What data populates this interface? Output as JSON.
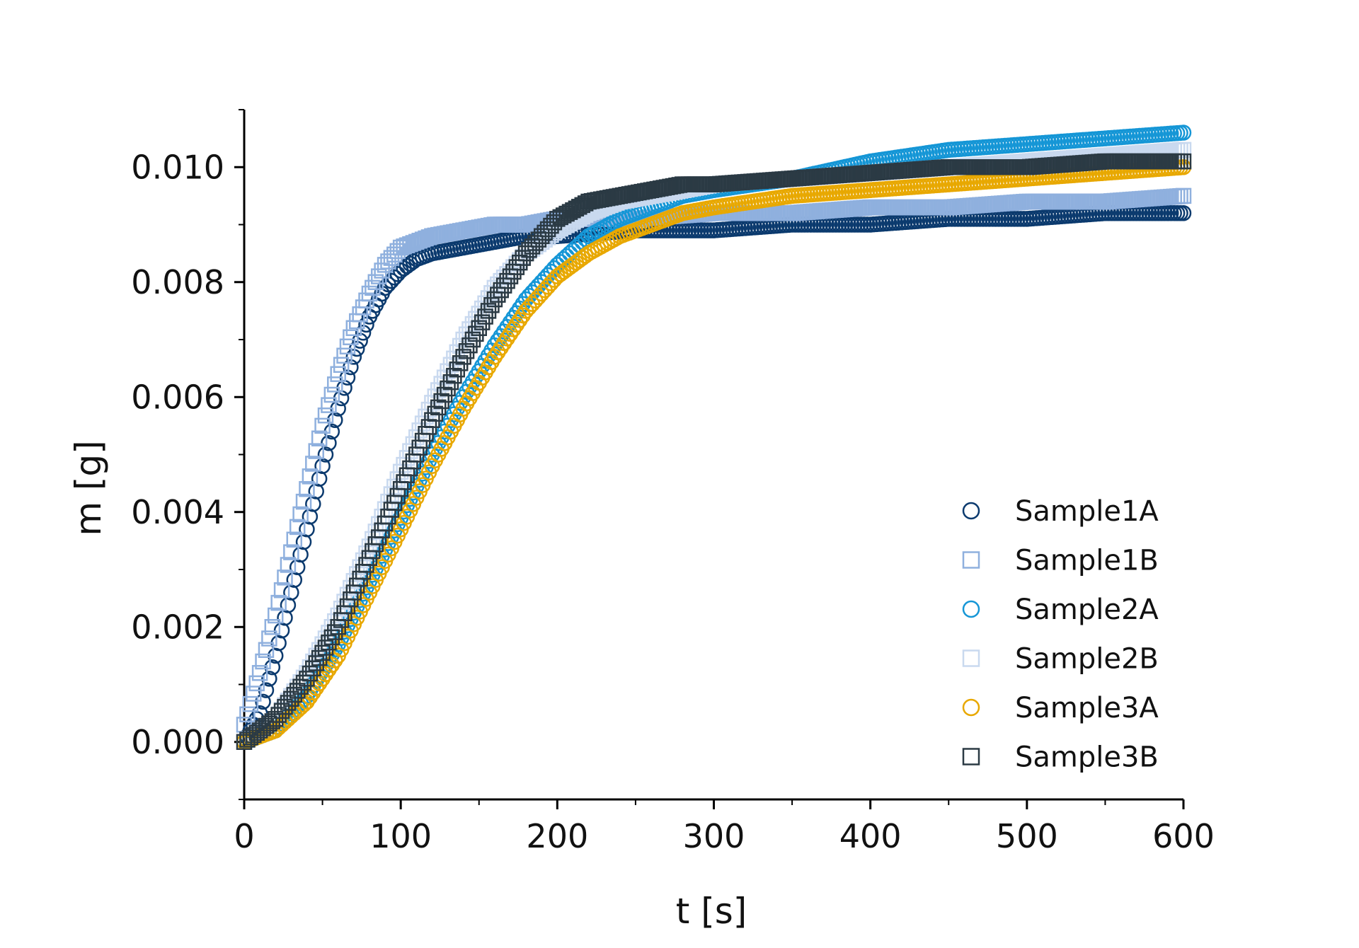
{
  "chart_data": {
    "type": "scatter",
    "xlabel": "t [s]",
    "ylabel": "m [g]",
    "xlim": [
      0,
      600
    ],
    "ylim": [
      -0.001,
      0.011
    ],
    "x_ticks": [
      "0",
      "100",
      "200",
      "300",
      "400",
      "500",
      "600"
    ],
    "y_ticks": [
      "0.000",
      "0.002",
      "0.004",
      "0.006",
      "0.008",
      "0.010"
    ],
    "legend_position": "bottom-right",
    "grid": false,
    "series": [
      {
        "name": "Sample1A",
        "marker": "circle",
        "color": "#0b3a6e",
        "x": [
          0,
          10,
          20,
          30,
          40,
          50,
          60,
          70,
          80,
          90,
          100,
          110,
          120,
          140,
          160,
          180,
          200,
          250,
          300,
          350,
          400,
          450,
          500,
          550,
          600
        ],
        "y": [
          0.0,
          0.0005,
          0.0015,
          0.0026,
          0.0037,
          0.0048,
          0.0058,
          0.0067,
          0.0074,
          0.0079,
          0.0082,
          0.0084,
          0.0085,
          0.0086,
          0.0087,
          0.0088,
          0.0088,
          0.0089,
          0.0089,
          0.009,
          0.009,
          0.0091,
          0.0091,
          0.0092,
          0.0092
        ]
      },
      {
        "name": "Sample1B",
        "marker": "square",
        "color": "#8fb0de",
        "x": [
          0,
          10,
          20,
          30,
          40,
          50,
          60,
          70,
          80,
          90,
          100,
          110,
          120,
          140,
          160,
          180,
          200,
          250,
          300,
          350,
          400,
          450,
          500,
          550,
          600
        ],
        "y": [
          0.0003,
          0.0012,
          0.0022,
          0.0033,
          0.0044,
          0.0055,
          0.0064,
          0.0072,
          0.0078,
          0.0083,
          0.0086,
          0.0087,
          0.0088,
          0.0089,
          0.009,
          0.009,
          0.0091,
          0.0091,
          0.0092,
          0.0092,
          0.0093,
          0.0093,
          0.0094,
          0.0094,
          0.0095
        ]
      },
      {
        "name": "Sample2A",
        "marker": "circle",
        "color": "#1596d6",
        "x": [
          0,
          20,
          40,
          60,
          80,
          100,
          120,
          140,
          160,
          180,
          200,
          220,
          240,
          260,
          280,
          300,
          350,
          400,
          450,
          500,
          550,
          600
        ],
        "y": [
          0.0,
          0.0002,
          0.0008,
          0.0017,
          0.0028,
          0.0039,
          0.005,
          0.006,
          0.0069,
          0.0077,
          0.0083,
          0.0088,
          0.0091,
          0.0093,
          0.0095,
          0.0096,
          0.0098,
          0.0101,
          0.0103,
          0.0104,
          0.0105,
          0.0106
        ]
      },
      {
        "name": "Sample2B",
        "marker": "square",
        "color": "#c9d9ef",
        "x": [
          0,
          20,
          40,
          60,
          80,
          100,
          120,
          140,
          160,
          180,
          200,
          220,
          240,
          260,
          280,
          300,
          350,
          400,
          450,
          500,
          550,
          600
        ],
        "y": [
          0.0,
          0.0004,
          0.0012,
          0.0022,
          0.0034,
          0.0047,
          0.0059,
          0.007,
          0.0079,
          0.0085,
          0.0089,
          0.0092,
          0.0094,
          0.0095,
          0.0096,
          0.0097,
          0.0098,
          0.0099,
          0.01,
          0.0101,
          0.0102,
          0.0103
        ]
      },
      {
        "name": "Sample3A",
        "marker": "circle",
        "color": "#e8a800",
        "x": [
          0,
          20,
          40,
          60,
          80,
          100,
          120,
          140,
          160,
          180,
          200,
          220,
          240,
          260,
          280,
          300,
          350,
          400,
          450,
          500,
          550,
          600
        ],
        "y": [
          0.0,
          0.0002,
          0.0007,
          0.0015,
          0.0026,
          0.0037,
          0.0048,
          0.0058,
          0.0067,
          0.0075,
          0.0081,
          0.0085,
          0.0088,
          0.009,
          0.0092,
          0.0093,
          0.0095,
          0.0096,
          0.0097,
          0.0098,
          0.0099,
          0.01
        ]
      },
      {
        "name": "Sample3B",
        "marker": "square",
        "color": "#2b3a44",
        "x": [
          0,
          20,
          40,
          60,
          80,
          100,
          120,
          140,
          160,
          180,
          200,
          220,
          240,
          260,
          280,
          300,
          350,
          400,
          450,
          500,
          550,
          600
        ],
        "y": [
          0.0,
          0.0004,
          0.0011,
          0.002,
          0.0032,
          0.0044,
          0.0056,
          0.0067,
          0.0077,
          0.0085,
          0.0091,
          0.0094,
          0.0095,
          0.0096,
          0.0097,
          0.0097,
          0.0098,
          0.0099,
          0.01,
          0.01,
          0.0101,
          0.0101
        ]
      }
    ]
  }
}
